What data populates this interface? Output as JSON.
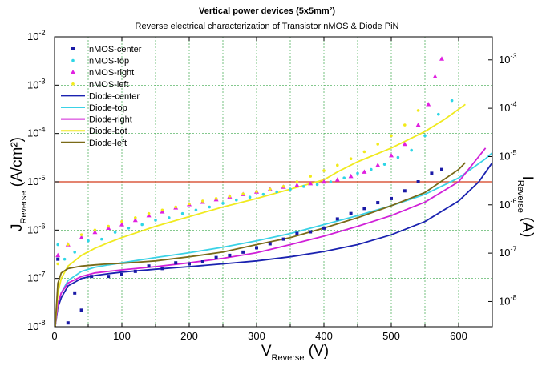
{
  "chart_data": {
    "type": "scatter",
    "title": "Vertical power devices (5x5mm²)",
    "subtitle": "Reverse electrical characterization of Transistor nMOS & Diode PiN",
    "xlabel": {
      "main": "V",
      "sub": "Reverse",
      "tail": " (V)"
    },
    "ylabel_left": {
      "main": "J",
      "sub": "Reverse",
      "tail": " (A/cm²)"
    },
    "ylabel_right": {
      "main": "I",
      "sub": "Reverse",
      "tail": " (A)"
    },
    "xlim": [
      0,
      650
    ],
    "ylim_left": [
      1e-08,
      0.01
    ],
    "ylim_right": [
      3e-09,
      0.003
    ],
    "yscale": "log",
    "grid": true,
    "legend_position": "top-left",
    "x_ticks": [
      0,
      100,
      200,
      300,
      400,
      500,
      600
    ],
    "x_tick_labels": [
      "0",
      "100",
      "200",
      "300",
      "400",
      "500",
      "600"
    ],
    "y_left_ticks": [
      {
        "value": 1e-08,
        "base": "10",
        "exp": "-8"
      },
      {
        "value": 1e-07,
        "base": "10",
        "exp": "-7"
      },
      {
        "value": 1e-06,
        "base": "10",
        "exp": "-6"
      },
      {
        "value": 1e-05,
        "base": "10",
        "exp": "-5"
      },
      {
        "value": 0.0001,
        "base": "10",
        "exp": "-4"
      },
      {
        "value": 0.001,
        "base": "10",
        "exp": "-3"
      },
      {
        "value": 0.01,
        "base": "10",
        "exp": "-2"
      }
    ],
    "y_right_ticks": [
      {
        "value": 1e-08,
        "base": "10",
        "exp": "-8"
      },
      {
        "value": 1e-07,
        "base": "10",
        "exp": "-7"
      },
      {
        "value": 1e-06,
        "base": "10",
        "exp": "-6"
      },
      {
        "value": 1e-05,
        "base": "10",
        "exp": "-5"
      },
      {
        "value": 0.0001,
        "base": "10",
        "exp": "-4"
      },
      {
        "value": 0.001,
        "base": "10",
        "exp": "-3"
      }
    ],
    "reference_line": {
      "y": 1e-05,
      "color": "#d43a1a"
    },
    "series": [
      {
        "name": "nMOS-center",
        "kind": "marker",
        "marker": "square",
        "color": "#1a1aa6",
        "x": [
          5,
          20,
          30,
          40,
          55,
          80,
          100,
          120,
          140,
          160,
          180,
          200,
          220,
          240,
          260,
          280,
          300,
          320,
          340,
          360,
          380,
          400,
          420,
          440,
          460,
          480,
          500,
          520,
          540,
          560,
          575
        ],
        "y": [
          2.5e-07,
          1.2e-08,
          5e-08,
          2.2e-08,
          1.1e-07,
          1.1e-07,
          1.2e-07,
          1.4e-07,
          1.8e-07,
          1.6e-07,
          2.1e-07,
          2e-07,
          2.2e-07,
          2.7e-07,
          3e-07,
          3.5e-07,
          4.3e-07,
          5.2e-07,
          6.5e-07,
          8.5e-07,
          9.2e-07,
          1.1e-06,
          1.7e-06,
          2.2e-06,
          2.8e-06,
          3.7e-06,
          4.5e-06,
          6.5e-06,
          1e-05,
          1.5e-05,
          1.8e-05
        ]
      },
      {
        "name": "nMOS-top",
        "kind": "marker",
        "marker": "dot",
        "color": "#2ed6e6",
        "x": [
          5,
          15,
          30,
          50,
          70,
          90,
          110,
          130,
          150,
          170,
          190,
          210,
          230,
          250,
          270,
          290,
          310,
          330,
          350,
          370,
          390,
          410,
          430,
          450,
          470,
          490,
          510,
          530,
          550,
          570,
          590
        ],
        "y": [
          5e-07,
          2.5e-07,
          3.5e-07,
          6e-07,
          6.5e-07,
          9e-07,
          1.1e-06,
          1.3e-06,
          1.6e-06,
          1.8e-06,
          2.2e-06,
          2.6e-06,
          3e-06,
          3.6e-06,
          4.2e-06,
          4.8e-06,
          5.5e-06,
          6.2e-06,
          7e-06,
          8e-06,
          8.8e-06,
          1e-05,
          1.2e-05,
          1.5e-05,
          1.8e-05,
          2.3e-05,
          3.2e-05,
          4.5e-05,
          9e-05,
          0.00025,
          0.00048
        ]
      },
      {
        "name": "nMOS-right",
        "kind": "marker",
        "marker": "triangle",
        "color": "#e020e0",
        "x": [
          5,
          20,
          40,
          60,
          80,
          100,
          120,
          140,
          160,
          180,
          200,
          220,
          240,
          260,
          280,
          300,
          320,
          340,
          360,
          380,
          400,
          420,
          440,
          460,
          480,
          500,
          520,
          540,
          555,
          565,
          575
        ],
        "y": [
          3e-07,
          5e-07,
          7e-07,
          9e-07,
          1.1e-06,
          1.3e-06,
          1.6e-06,
          2e-06,
          2.4e-06,
          2.9e-06,
          3.4e-06,
          3.8e-06,
          4.3e-06,
          4.9e-06,
          5.5e-06,
          6.2e-06,
          7e-06,
          7.8e-06,
          8.5e-06,
          9.2e-06,
          1e-05,
          1.1e-05,
          1.3e-05,
          1.6e-05,
          2.2e-05,
          3.5e-05,
          6e-05,
          0.00015,
          0.0004,
          0.0015,
          0.0035
        ]
      },
      {
        "name": "nMOS-left",
        "kind": "marker",
        "marker": "dot",
        "color": "#f2ea1a",
        "x": [
          5,
          20,
          40,
          60,
          80,
          100,
          120,
          140,
          160,
          180,
          200,
          220,
          240,
          260,
          280,
          300,
          320,
          340,
          360,
          380,
          400,
          420,
          440,
          460,
          480,
          500,
          520,
          540
        ],
        "y": [
          2e-07,
          5e-07,
          8e-07,
          1e-06,
          1.2e-06,
          1.5e-06,
          1.8e-06,
          2.2e-06,
          2.6e-06,
          3e-06,
          3.5e-06,
          4e-06,
          4.5e-06,
          5e-06,
          5.6e-06,
          6.3e-06,
          7e-06,
          8e-06,
          1e-05,
          1.3e-05,
          1.7e-05,
          2.2e-05,
          3e-05,
          4.2e-05,
          6e-05,
          9e-05,
          0.00015,
          0.0003
        ]
      },
      {
        "name": "Diode-center",
        "kind": "line",
        "color": "#1a22b0",
        "x": [
          1,
          5,
          10,
          20,
          40,
          60,
          80,
          100,
          150,
          200,
          250,
          300,
          350,
          400,
          450,
          500,
          550,
          600,
          630,
          650
        ],
        "y": [
          1e-08,
          2.5e-08,
          4e-08,
          7e-08,
          1e-07,
          1.15e-07,
          1.25e-07,
          1.35e-07,
          1.55e-07,
          1.75e-07,
          2e-07,
          2.3e-07,
          2.8e-07,
          3.6e-07,
          5e-07,
          8e-07,
          1.5e-06,
          4e-06,
          1e-05,
          2.5e-05
        ]
      },
      {
        "name": "Diode-top",
        "kind": "line",
        "color": "#3ad2e6",
        "x": [
          1,
          5,
          10,
          20,
          40,
          60,
          80,
          100,
          150,
          200,
          250,
          300,
          350,
          400,
          450,
          500,
          550,
          600,
          640,
          650
        ],
        "y": [
          1e-08,
          3e-08,
          5e-08,
          9e-08,
          1.4e-07,
          1.7e-07,
          1.9e-07,
          2.1e-07,
          2.7e-07,
          3.4e-07,
          4.4e-07,
          6e-07,
          8.5e-07,
          1.3e-06,
          2e-06,
          3.2e-06,
          5.5e-06,
          1.2e-05,
          3e-05,
          4e-05
        ]
      },
      {
        "name": "Diode-right",
        "kind": "line",
        "color": "#d020d8",
        "x": [
          1,
          5,
          10,
          20,
          40,
          60,
          80,
          100,
          150,
          200,
          250,
          300,
          350,
          400,
          450,
          500,
          550,
          600,
          640
        ],
        "y": [
          1e-08,
          3e-08,
          5e-08,
          8e-08,
          1.1e-07,
          1.3e-07,
          1.4e-07,
          1.5e-07,
          1.75e-07,
          2.1e-07,
          2.6e-07,
          3.4e-07,
          5e-07,
          7.5e-07,
          1.2e-06,
          2e-06,
          3.8e-06,
          1e-05,
          5e-05
        ]
      },
      {
        "name": "Diode-bot",
        "kind": "line",
        "color": "#f0ea20",
        "x": [
          1,
          5,
          10,
          20,
          40,
          60,
          80,
          100,
          150,
          200,
          250,
          300,
          350,
          400,
          420,
          450,
          500,
          550,
          580,
          610
        ],
        "y": [
          1e-08,
          5e-08,
          1e-07,
          1.8e-07,
          3e-07,
          4.2e-07,
          5.5e-07,
          7e-07,
          1.2e-06,
          1.9e-06,
          3e-06,
          4.5e-06,
          7e-06,
          1.1e-05,
          1.6e-05,
          2.6e-05,
          5e-05,
          0.00011,
          0.0002,
          0.0004
        ]
      },
      {
        "name": "Diode-left",
        "kind": "line",
        "color": "#7a6a18",
        "x": [
          1,
          5,
          10,
          20,
          40,
          60,
          80,
          100,
          150,
          200,
          250,
          300,
          350,
          400,
          450,
          500,
          550,
          600,
          610
        ],
        "y": [
          1e-08,
          8e-08,
          1.3e-07,
          1.6e-07,
          1.8e-07,
          1.9e-07,
          2e-07,
          2.05e-07,
          2.3e-07,
          2.8e-07,
          3.5e-07,
          5e-07,
          7e-07,
          1.1e-06,
          1.8e-06,
          3.2e-06,
          6e-06,
          1.8e-05,
          2.5e-05
        ]
      }
    ]
  }
}
